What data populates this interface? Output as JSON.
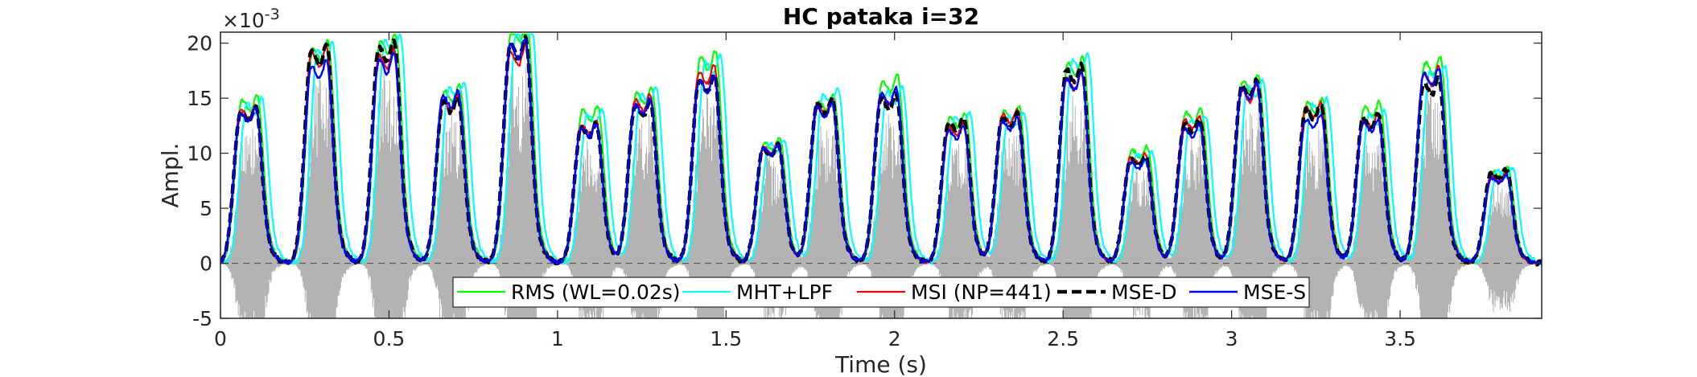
{
  "chart_data": {
    "type": "line",
    "title": "HC pataka i=32",
    "xlabel": "Time (s)",
    "ylabel": "Ampl.",
    "y_exponent_label": "×10^-3",
    "y_exponent_base": "×10",
    "y_exponent_power": "-3",
    "xlim": [
      0,
      3.92
    ],
    "ylim": [
      -5,
      21
    ],
    "x_ticks": [
      0,
      0.5,
      1,
      1.5,
      2,
      2.5,
      3,
      3.5
    ],
    "x_tick_labels": [
      "0",
      "0.5",
      "1",
      "1.5",
      "2",
      "2.5",
      "3",
      "3.5"
    ],
    "y_ticks": [
      -5,
      0,
      5,
      10,
      15,
      20
    ],
    "y_tick_labels": [
      "-5",
      "0",
      "5",
      "10",
      "15",
      "20"
    ],
    "grid": false,
    "legend_placement": "bottom-center",
    "background_signal_color": "#b3b3b3",
    "zero_line_color": "#555555",
    "syllables": [
      {
        "t": 0.06,
        "base": 14.0,
        "trough": -4.5
      },
      {
        "t": 0.27,
        "base": 18.5,
        "trough": -5.0
      },
      {
        "t": 0.47,
        "base": 19.0,
        "trough": -5.0
      },
      {
        "t": 0.66,
        "base": 15.0,
        "trough": -5.0
      },
      {
        "t": 0.86,
        "base": 19.5,
        "trough": -5.0
      },
      {
        "t": 1.07,
        "base": 12.5,
        "trough": -5.0
      },
      {
        "t": 1.23,
        "base": 14.8,
        "trough": -5.0
      },
      {
        "t": 1.42,
        "base": 17.0,
        "trough": -5.0
      },
      {
        "t": 1.61,
        "base": 10.5,
        "trough": -4.5
      },
      {
        "t": 1.77,
        "base": 14.0,
        "trough": -5.0
      },
      {
        "t": 1.96,
        "base": 15.0,
        "trough": -5.0
      },
      {
        "t": 2.16,
        "base": 12.5,
        "trough": -4.5
      },
      {
        "t": 2.32,
        "base": 13.0,
        "trough": -4.5
      },
      {
        "t": 2.51,
        "base": 17.0,
        "trough": -5.0
      },
      {
        "t": 2.7,
        "base": 9.5,
        "trough": -4.5
      },
      {
        "t": 2.86,
        "base": 12.5,
        "trough": -4.5
      },
      {
        "t": 3.03,
        "base": 15.5,
        "trough": -5.0
      },
      {
        "t": 3.22,
        "base": 13.5,
        "trough": -5.0
      },
      {
        "t": 3.39,
        "base": 13.0,
        "trough": -4.5
      },
      {
        "t": 3.57,
        "base": 17.0,
        "trough": -5.0
      },
      {
        "t": 3.77,
        "base": 8.0,
        "trough": -4.5
      }
    ],
    "series": [
      {
        "name": "RMS (WL=0.02s)",
        "color": "#00ff00",
        "dashed": false,
        "width": 2.2,
        "shift": 0.004,
        "scale": 1.08,
        "seed": 11
      },
      {
        "name": "MHT+LPF",
        "color": "#00ffff",
        "dashed": false,
        "width": 2.2,
        "shift": 0.018,
        "scale": 1.06,
        "seed": 23
      },
      {
        "name": "MSI (NP=441)",
        "color": "#ff0000",
        "dashed": false,
        "width": 2.2,
        "shift": 0.0,
        "scale": 1.02,
        "seed": 37
      },
      {
        "name": "MSE-D",
        "color": "#000000",
        "dashed": true,
        "width": 4.5,
        "shift": 0.0,
        "scale": 1.0,
        "seed": 41
      },
      {
        "name": "MSE-S",
        "color": "#0000ff",
        "dashed": false,
        "width": 2.4,
        "shift": 0.0,
        "scale": 1.0,
        "seed": 53
      }
    ]
  }
}
